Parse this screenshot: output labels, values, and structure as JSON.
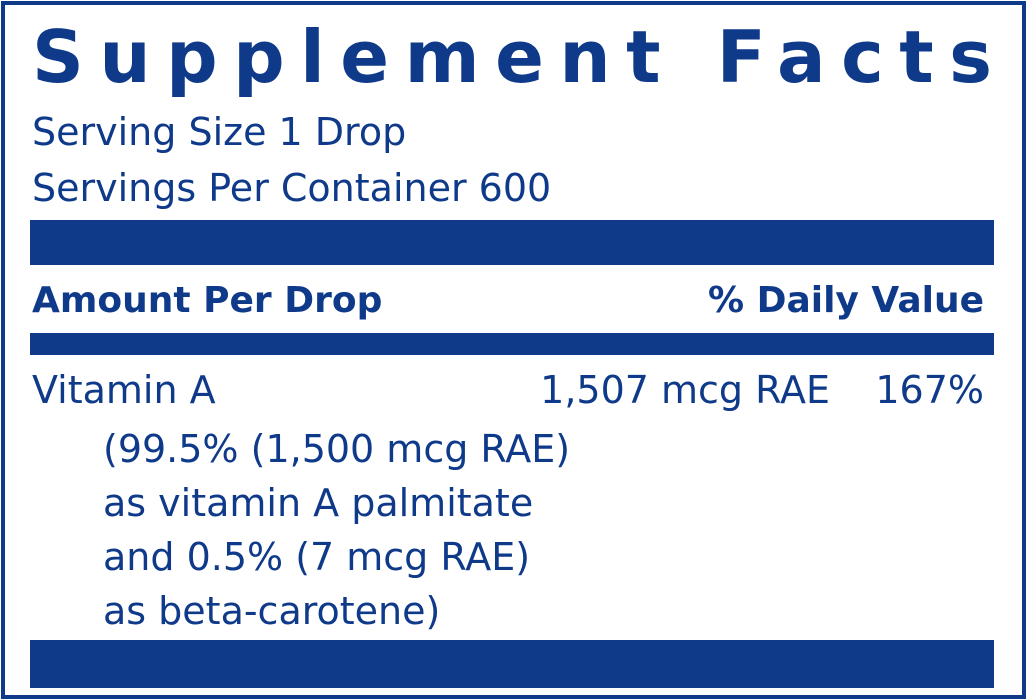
{
  "header": {
    "title": "Supplement Facts",
    "serving_size": "Serving Size 1 Drop",
    "servings_per_container": "Servings Per Container 600"
  },
  "table": {
    "columns": [
      "Amount Per Drop",
      "% Daily Value"
    ],
    "rows": [
      {
        "name": "Vitamin A",
        "amount": "1,507 mcg RAE",
        "daily_value": "167%",
        "description": [
          "(99.5% (1,500 mcg RAE)",
          "as vitamin A palmitate",
          "and 0.5% (7 mcg RAE)",
          "as beta-carotene)"
        ]
      }
    ]
  }
}
